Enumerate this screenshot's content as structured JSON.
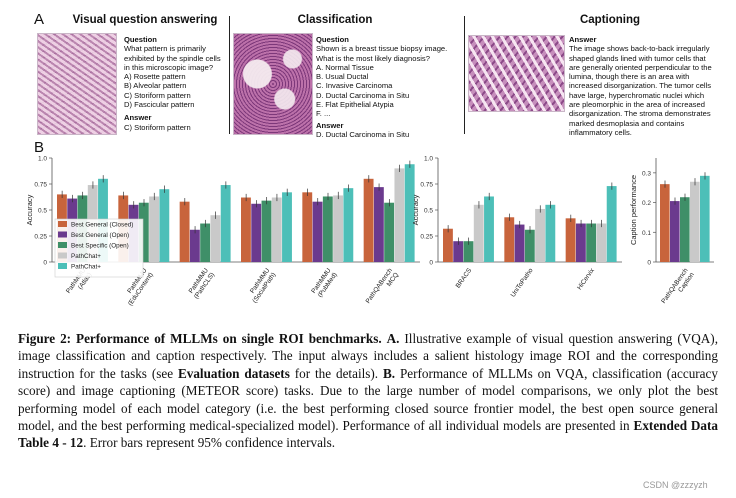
{
  "panel_a": {
    "letter": "A",
    "vqa": {
      "title": "Visual question answering",
      "question_hd": "Question",
      "question": [
        "What pattern is primarily",
        "exhibited by the spindle cells",
        "in this microscopic image?"
      ],
      "options": [
        "A)  Rosette pattern",
        "B)  Alveolar pattern",
        "C)  Storiform pattern",
        "D)  Fascicular pattern"
      ],
      "answer_hd": "Answer",
      "answer": "C) Storiform pattern"
    },
    "cls": {
      "title": "Classification",
      "question_hd": "Question",
      "question": [
        "Shown is a breast tissue biopsy image.",
        "What is the most likely diagnosis?"
      ],
      "options": [
        "A.  Normal Tissue",
        "B.  Usual Ductal",
        "C.  Invasive Carcinoma",
        "D.  Ductal Carcinoma in Situ",
        "E.  Flat Epithelial Atypia",
        "F.  ..."
      ],
      "answer_hd": "Answer",
      "answer": "D.  Ductal Carcinoma in Situ"
    },
    "cap": {
      "title": "Captioning",
      "answer_hd": "Answer",
      "answer": [
        "The image shows back-to-back irregularly",
        "shaped glands lined with tumor cells that",
        "are generally oriented perpendicular to the",
        "lumina, though there is an area with",
        "increased disorganization. The tumor cells",
        "have large, hyperchromatic nuclei which",
        "are pleomorphic in the area of increased",
        "disorganization. The stroma demonstrates",
        "marked desmoplasia and contains",
        "inflammatory cells."
      ]
    }
  },
  "panel_b": {
    "letter": "B",
    "colors": [
      "#c8643c",
      "#6b3a8e",
      "#3f8f68",
      "#c9c9c9",
      "#4dbfb8"
    ],
    "chart_data": [
      {
        "type": "bar",
        "ylabel": "Accuracy",
        "ylim": [
          0,
          1.0
        ],
        "yticks": [
          "0",
          "0.25",
          "0.5",
          "0.75",
          "1.0"
        ],
        "legend_placement": "bottom-left",
        "categories": [
          "PathMMU\n(Atlas)",
          "PathMMU\n(EduContent)",
          "PathMMU\n(PathCLS)",
          "PathMMU\n(SocialPath)",
          "PathMMU\n(PubMed)",
          "PathQABench\nMCQ"
        ],
        "series": [
          {
            "name": "Best General (Closed)",
            "values": [
              0.65,
              0.64,
              0.58,
              0.62,
              0.67,
              0.8
            ]
          },
          {
            "name": "Best General (Open)",
            "values": [
              0.61,
              0.55,
              0.31,
              0.56,
              0.58,
              0.72
            ]
          },
          {
            "name": "Best Specific (Open)",
            "values": [
              0.64,
              0.57,
              0.37,
              0.59,
              0.63,
              0.57
            ]
          },
          {
            "name": "PathChat+",
            "values": [
              0.74,
              0.63,
              0.45,
              0.62,
              0.64,
              0.9
            ]
          },
          {
            "name": "PathChat+",
            "values": [
              0.8,
              0.7,
              0.74,
              0.67,
              0.71,
              0.94
            ]
          }
        ]
      },
      {
        "type": "bar",
        "ylabel": "Accuracy",
        "ylim": [
          0,
          1.0
        ],
        "yticks": [
          "0",
          "0.25",
          "0.5",
          "0.75",
          "1.0"
        ],
        "categories": [
          "BRACS",
          "UniToPatho",
          "HiCervix"
        ],
        "series": [
          {
            "name": "Best General (Closed)",
            "values": [
              0.32,
              0.43,
              0.42
            ]
          },
          {
            "name": "Best General (Open)",
            "values": [
              0.2,
              0.36,
              0.37
            ]
          },
          {
            "name": "Best Specific (Open)",
            "values": [
              0.2,
              0.31,
              0.37
            ]
          },
          {
            "name": "PathChat+",
            "values": [
              0.55,
              0.51,
              0.37
            ]
          },
          {
            "name": "PathChat+",
            "values": [
              0.63,
              0.55,
              0.73
            ]
          }
        ]
      },
      {
        "type": "bar",
        "ylabel": "Caption performance",
        "ylim": [
          0,
          0.35
        ],
        "yticks": [
          "0",
          "0.1",
          "0.2",
          "0.3"
        ],
        "categories": [
          "PathQABench\nCaption"
        ],
        "series": [
          {
            "name": "Best General (Closed)",
            "values": [
              0.262
            ]
          },
          {
            "name": "Best General (Open)",
            "values": [
              0.205
            ]
          },
          {
            "name": "Best Specific (Open)",
            "values": [
              0.218
            ]
          },
          {
            "name": "PathChat+",
            "values": [
              0.27
            ]
          },
          {
            "name": "PathChat+",
            "values": [
              0.29
            ]
          }
        ]
      }
    ]
  },
  "caption": {
    "lead_bold": "Figure 2: Performance of MLLMs on single ROI benchmarks.",
    "a_bold": "A.",
    "a_text": " Illustrative example of visual question answering (VQA), image classification and caption respectively. The input always includes a salient histology image ROI and the corresponding instruction for the tasks (see ",
    "eval_bold": "Evaluation datasets",
    "a_tail": " for the details). ",
    "b_bold": "B.",
    "b_text": " Performance of MLLMs on VQA, classification (accuracy score) and image captioning (METEOR score) tasks. Due to the large number of model comparisons, we only plot the best performing model of each model category (i.e. the best performing closed source frontier model, the best open source general model, and the best performing medical-specialized model). Performance of all individual models are presented in ",
    "ext_bold": "Extended Data Table 4 - 12",
    "tail": ". Error bars represent 95% confidence intervals."
  },
  "watermark": "CSDN @zzzyzh"
}
